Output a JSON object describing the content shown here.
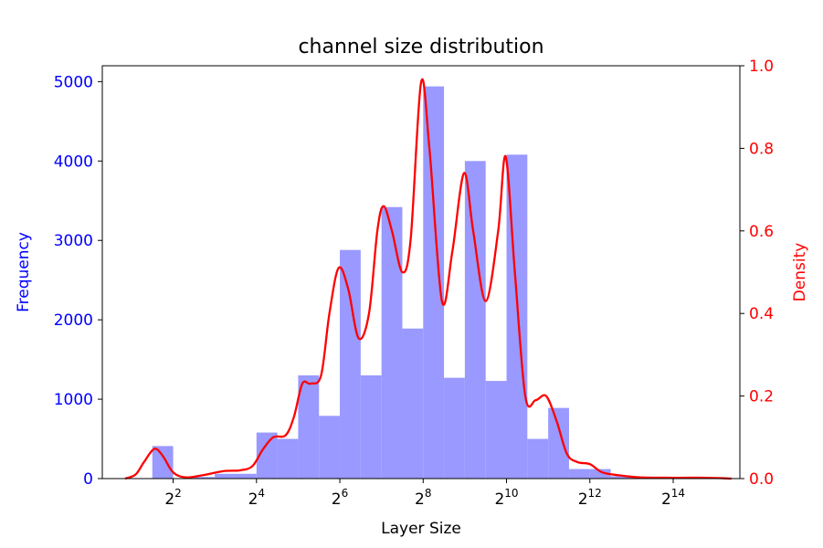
{
  "chart_data": {
    "type": "bar",
    "title": "channel size distribution",
    "xlabel": "Layer Size",
    "ylabel_left": "Frequency",
    "ylabel_right": "Density",
    "x_scale": "log2",
    "xlim_log2": [
      0.3,
      15.6
    ],
    "ylim_left": [
      0,
      5200
    ],
    "ylim_right": [
      0,
      1.0
    ],
    "x_ticks": [
      {
        "exp": 2,
        "base": "2",
        "sup": "2"
      },
      {
        "exp": 4,
        "base": "2",
        "sup": "4"
      },
      {
        "exp": 6,
        "base": "2",
        "sup": "6"
      },
      {
        "exp": 8,
        "base": "2",
        "sup": "8"
      },
      {
        "exp": 10,
        "base": "2",
        "sup": "10"
      },
      {
        "exp": 12,
        "base": "2",
        "sup": "12"
      },
      {
        "exp": 14,
        "base": "2",
        "sup": "14"
      }
    ],
    "y_ticks_left": [
      0,
      1000,
      2000,
      3000,
      4000,
      5000
    ],
    "y_ticks_right": [
      "0.0",
      "0.2",
      "0.4",
      "0.6",
      "0.8",
      "1.0"
    ],
    "histogram": {
      "name": "Frequency",
      "bin_edges_log2": [
        0.5,
        1.0,
        1.5,
        2.0,
        2.5,
        3.0,
        3.5,
        4.0,
        4.5,
        5.0,
        5.5,
        6.0,
        6.5,
        7.0,
        7.5,
        8.0,
        8.5,
        9.0,
        9.5,
        10.0,
        10.5,
        11.0,
        11.5,
        12.0,
        12.5,
        13.0,
        13.5,
        14.0,
        14.5,
        15.0,
        15.5
      ],
      "counts": [
        0,
        0,
        410,
        0,
        20,
        60,
        60,
        580,
        500,
        1300,
        790,
        2880,
        1300,
        3420,
        1890,
        4940,
        1270,
        4000,
        1230,
        4080,
        500,
        890,
        120,
        120,
        30,
        10,
        10,
        5,
        5,
        5
      ],
      "color": "#9999ff"
    },
    "density": {
      "name": "Density",
      "color": "#ff0000",
      "points": [
        [
          0.85,
          0.0
        ],
        [
          1.1,
          0.01
        ],
        [
          1.3,
          0.04
        ],
        [
          1.55,
          0.072
        ],
        [
          1.75,
          0.055
        ],
        [
          2.0,
          0.015
        ],
        [
          2.3,
          0.003
        ],
        [
          2.7,
          0.008
        ],
        [
          3.2,
          0.018
        ],
        [
          3.6,
          0.02
        ],
        [
          3.9,
          0.03
        ],
        [
          4.15,
          0.07
        ],
        [
          4.4,
          0.1
        ],
        [
          4.7,
          0.105
        ],
        [
          4.9,
          0.15
        ],
        [
          5.1,
          0.23
        ],
        [
          5.3,
          0.23
        ],
        [
          5.55,
          0.25
        ],
        [
          5.75,
          0.4
        ],
        [
          5.97,
          0.51
        ],
        [
          6.2,
          0.46
        ],
        [
          6.45,
          0.34
        ],
        [
          6.7,
          0.4
        ],
        [
          6.9,
          0.6
        ],
        [
          7.05,
          0.66
        ],
        [
          7.25,
          0.6
        ],
        [
          7.5,
          0.5
        ],
        [
          7.7,
          0.58
        ],
        [
          7.95,
          0.96
        ],
        [
          8.15,
          0.8
        ],
        [
          8.45,
          0.43
        ],
        [
          8.7,
          0.55
        ],
        [
          8.98,
          0.74
        ],
        [
          9.2,
          0.6
        ],
        [
          9.5,
          0.43
        ],
        [
          9.8,
          0.6
        ],
        [
          9.98,
          0.78
        ],
        [
          10.2,
          0.5
        ],
        [
          10.45,
          0.2
        ],
        [
          10.7,
          0.19
        ],
        [
          10.95,
          0.2
        ],
        [
          11.2,
          0.14
        ],
        [
          11.45,
          0.06
        ],
        [
          11.7,
          0.04
        ],
        [
          12.0,
          0.035
        ],
        [
          12.3,
          0.015
        ],
        [
          12.7,
          0.008
        ],
        [
          13.2,
          0.003
        ],
        [
          14.0,
          0.002
        ],
        [
          14.8,
          0.002
        ],
        [
          15.4,
          0.0
        ]
      ]
    },
    "legend": "none",
    "grid": false
  }
}
